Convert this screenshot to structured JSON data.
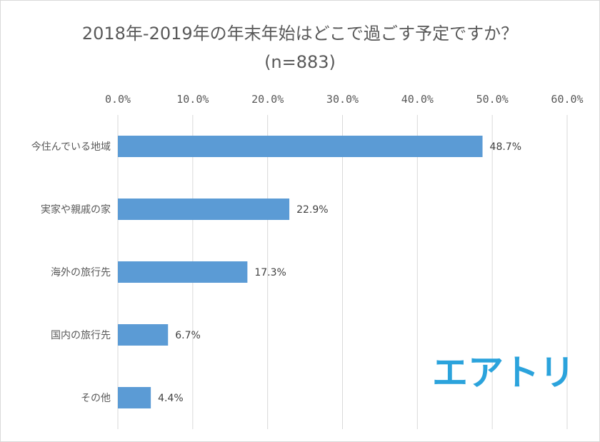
{
  "chart_data": {
    "type": "bar",
    "orientation": "horizontal",
    "title": "2018年-2019年の年末年始はどこで過ごす予定ですか？",
    "subtitle": "(n=883)",
    "categories": [
      "今住んでいる地域",
      "実家や親戚の家",
      "海外の旅行先",
      "国内の旅行先",
      "その他"
    ],
    "values": [
      48.7,
      22.9,
      17.3,
      6.7,
      4.4
    ],
    "value_labels": [
      "48.7%",
      "22.9%",
      "17.3%",
      "6.7%",
      "4.4%"
    ],
    "xlim": [
      0,
      60
    ],
    "x_ticks": [
      "0.0%",
      "10.0%",
      "20.0%",
      "30.0%",
      "40.0%",
      "50.0%",
      "60.0%"
    ],
    "x_axis_position": "top",
    "grid": true,
    "bar_color": "#5b9bd5",
    "grid_color": "#d9d9d9"
  },
  "logo": {
    "text": "エアトリ",
    "color": "#2ba3dc"
  }
}
